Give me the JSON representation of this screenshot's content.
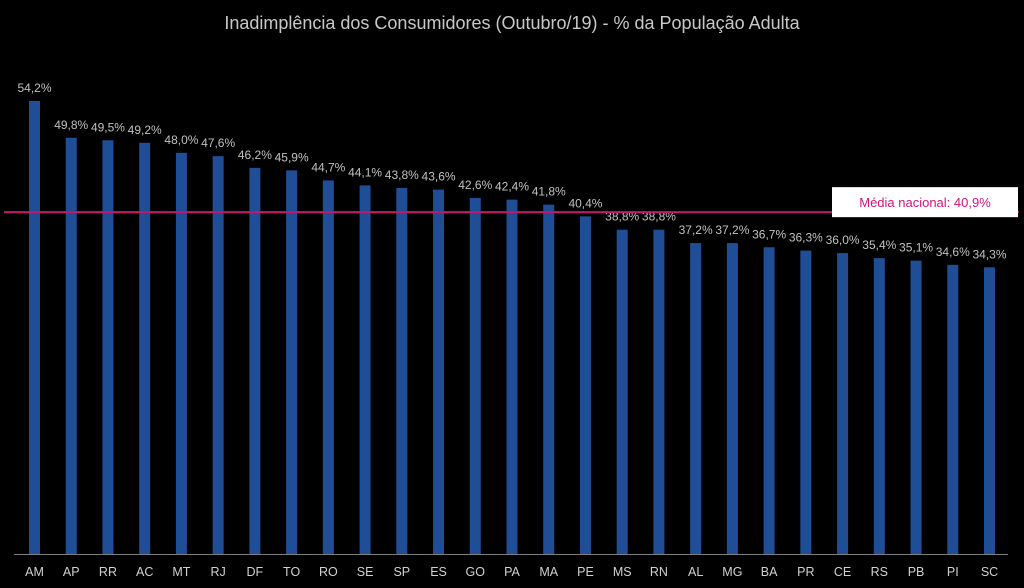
{
  "colors": {
    "background": "#000000",
    "bar": "#1f4e96",
    "average_line": "#c2186b",
    "average_label_bg": "#ffffff",
    "average_label_text": "#d4147a"
  },
  "chart_data": {
    "type": "bar",
    "title": "Inadimplência dos Consumidores (Outubro/19) - % da População Adulta",
    "xlabel": "",
    "ylabel": "",
    "ylim": [
      0,
      54.2
    ],
    "grid": false,
    "legend": "none",
    "categories": [
      "AM",
      "AP",
      "RR",
      "AC",
      "MT",
      "RJ",
      "DF",
      "TO",
      "RO",
      "SE",
      "SP",
      "ES",
      "GO",
      "PA",
      "MA",
      "PE",
      "MS",
      "RN",
      "AL",
      "MG",
      "BA",
      "PR",
      "CE",
      "RS",
      "PB",
      "PI",
      "SC"
    ],
    "values": [
      54.2,
      49.8,
      49.5,
      49.2,
      48.0,
      47.6,
      46.2,
      45.9,
      44.7,
      44.1,
      43.8,
      43.6,
      42.6,
      42.4,
      41.8,
      40.4,
      38.8,
      38.8,
      37.2,
      37.2,
      36.7,
      36.3,
      36.0,
      35.4,
      35.1,
      34.6,
      34.3
    ],
    "value_labels": [
      "54,2%",
      "49,8%",
      "49,5%",
      "49,2%",
      "48,0%",
      "47,6%",
      "46,2%",
      "45,9%",
      "44,7%",
      "44,1%",
      "43,8%",
      "43,6%",
      "42,6%",
      "42,4%",
      "41,8%",
      "40,4%",
      "38,8%",
      "38,8%",
      "37,2%",
      "37,2%",
      "36,7%",
      "36,3%",
      "36,0%",
      "35,4%",
      "35,1%",
      "34,6%",
      "34,3%"
    ],
    "reference_line": {
      "value": 40.9,
      "label": "Média nacional: 40,9%"
    }
  }
}
